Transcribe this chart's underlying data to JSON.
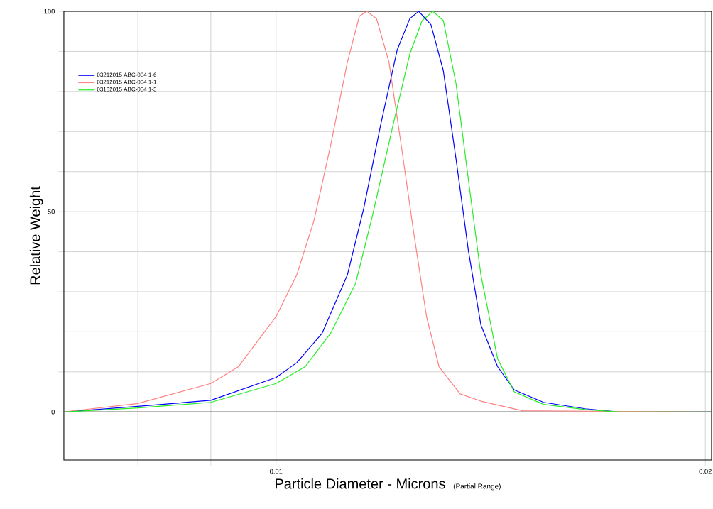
{
  "chart_data": {
    "type": "line",
    "xlabel": "Particle Diameter  -  Microns",
    "ylabel": "Relative Weight",
    "annotations": [
      "(Partial Range)"
    ],
    "log": "x",
    "grid": true,
    "legend": "top left",
    "marker": "none",
    "line_style": "solid",
    "xlim": [
      0.0071,
      0.0202
    ],
    "ylim": [
      -12,
      100
    ],
    "xticks": [
      {
        "value": 0.008,
        "label": null
      },
      {
        "value": 0.009,
        "label": null
      },
      0.01,
      0.02
    ],
    "yticks": [
      0,
      {
        "value": 10,
        "label": null
      },
      {
        "value": 20,
        "label": null
      },
      {
        "value": 30,
        "label": null
      },
      {
        "value": 40,
        "label": null
      },
      50,
      {
        "value": 60,
        "label": null
      },
      {
        "value": 70,
        "label": null
      },
      {
        "value": 80,
        "label": null
      },
      {
        "value": 90,
        "label": null
      },
      100
    ],
    "series": [
      {
        "name": "03212015 ABC-004 1-6",
        "color": "#0000ff",
        "x": [
          0.0071,
          0.008,
          0.009,
          0.01,
          0.01034,
          0.01077,
          0.01122,
          0.01152,
          0.01184,
          0.01216,
          0.01241,
          0.01259,
          0.01284,
          0.0131,
          0.01337,
          0.01364,
          0.01392,
          0.0143,
          0.01469,
          0.0154,
          0.01647,
          0.01739,
          0.0202
        ],
        "values": [
          0,
          1.4,
          2.9,
          8.6,
          12.3,
          19.6,
          34.2,
          50.8,
          71.7,
          90.4,
          98.2,
          100,
          96.7,
          85.2,
          63.3,
          40.4,
          21.7,
          11.3,
          5.5,
          2.4,
          0.8,
          0,
          0
        ]
      },
      {
        "name": "03212015 ABC-004 1-1",
        "color": "#ff8080",
        "x": [
          0.0071,
          0.008,
          0.009,
          0.00941,
          0.01,
          0.01034,
          0.01063,
          0.01092,
          0.01122,
          0.01144,
          0.01158,
          0.01176,
          0.012,
          0.01224,
          0.01249,
          0.01275,
          0.01301,
          0.01346,
          0.01392,
          0.01489,
          0.02,
          0.0202
        ],
        "values": [
          0,
          2.1,
          7.1,
          11.3,
          23.8,
          34.2,
          47.7,
          66.5,
          87.3,
          98.8,
          100,
          98.2,
          87.3,
          66.5,
          44.6,
          23.8,
          11.3,
          4.5,
          2.7,
          0.3,
          0,
          0
        ]
      },
      {
        "name": "03182015 ABC-004 1-3",
        "color": "#22ee22",
        "x": [
          0.0071,
          0.008,
          0.009,
          0.01,
          0.01048,
          0.01092,
          0.01137,
          0.01168,
          0.01208,
          0.01241,
          0.01266,
          0.01288,
          0.0131,
          0.01337,
          0.01364,
          0.01392,
          0.0143,
          0.01469,
          0.0154,
          0.01647,
          0.01739,
          0.0202
        ],
        "values": [
          0,
          1.0,
          2.4,
          7.1,
          11.3,
          19.6,
          32.1,
          48.8,
          71.7,
          89.4,
          97.7,
          100,
          97.7,
          82.1,
          58.1,
          34.2,
          13.3,
          5.0,
          1.9,
          0.6,
          0,
          0
        ]
      }
    ]
  }
}
